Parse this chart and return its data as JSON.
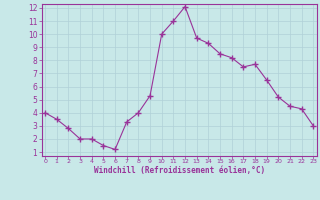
{
  "x": [
    0,
    1,
    2,
    3,
    4,
    5,
    6,
    7,
    8,
    9,
    10,
    11,
    12,
    13,
    14,
    15,
    16,
    17,
    18,
    19,
    20,
    21,
    22,
    23
  ],
  "y": [
    4.0,
    3.5,
    2.8,
    2.0,
    2.0,
    1.5,
    1.2,
    3.3,
    4.0,
    5.3,
    10.0,
    11.0,
    12.1,
    9.7,
    9.3,
    8.5,
    8.2,
    7.5,
    7.7,
    6.5,
    5.2,
    4.5,
    4.3,
    3.0
  ],
  "line_color": "#993399",
  "marker": "+",
  "marker_size": 4,
  "bg_color": "#c8e8e8",
  "grid_color": "#b0d0d8",
  "xlabel": "Windchill (Refroidissement éolien,°C)",
  "xlabel_color": "#993399",
  "tick_color": "#993399",
  "spine_color": "#993399",
  "ylim": [
    1,
    12
  ],
  "xlim": [
    0,
    23
  ],
  "yticks": [
    1,
    2,
    3,
    4,
    5,
    6,
    7,
    8,
    9,
    10,
    11,
    12
  ],
  "xticks": [
    0,
    1,
    2,
    3,
    4,
    5,
    6,
    7,
    8,
    9,
    10,
    11,
    12,
    13,
    14,
    15,
    16,
    17,
    18,
    19,
    20,
    21,
    22,
    23
  ]
}
